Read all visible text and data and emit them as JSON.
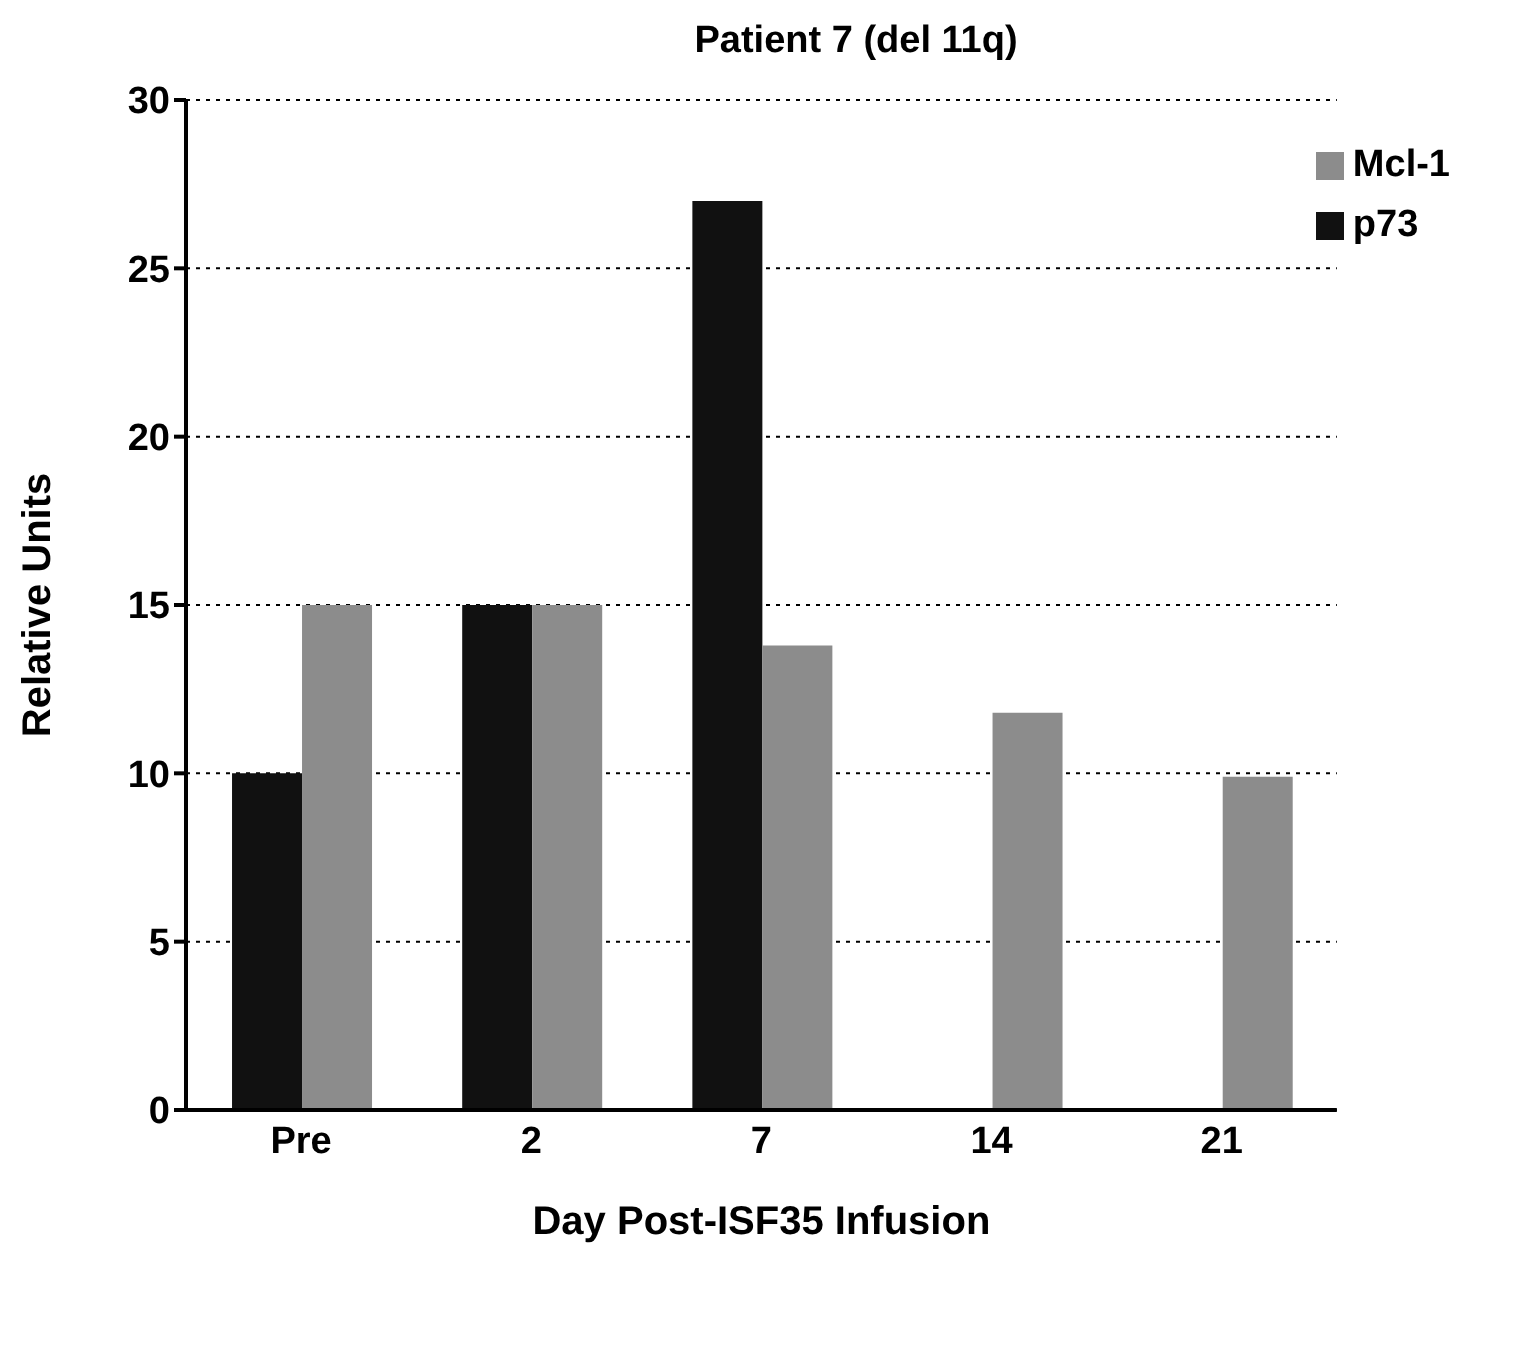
{
  "chart_data": {
    "type": "bar",
    "title": "Patient 7 (del 11q)",
    "xlabel": "Day Post-ISF35 Infusion",
    "ylabel": "Relative Units",
    "categories": [
      "Pre",
      "2",
      "7",
      "14",
      "21"
    ],
    "series": [
      {
        "name": "p73",
        "color": "#111111",
        "values": [
          10,
          15,
          27,
          null,
          null
        ]
      },
      {
        "name": "Mcl-1",
        "color": "#8c8c8c",
        "values": [
          15,
          15,
          13.8,
          11.8,
          9.9
        ]
      }
    ],
    "ylim": [
      0,
      30
    ],
    "yticks": [
      0,
      5,
      10,
      15,
      20,
      25,
      30
    ],
    "grid": "y",
    "legend": "top right"
  }
}
